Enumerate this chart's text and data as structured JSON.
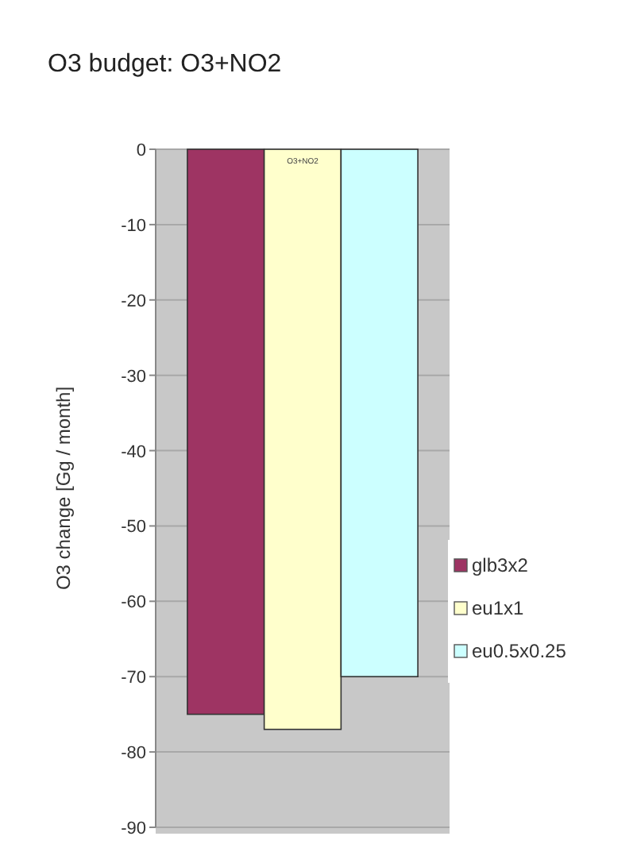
{
  "chart_data": {
    "type": "bar",
    "title": "O3 budget: O3+NO2",
    "ylabel": "O3 change [Gg / month]",
    "categories": [
      null
    ],
    "series": [
      {
        "name": "glb3x2",
        "color": "#9e3463",
        "values": [
          -75
        ]
      },
      {
        "name": "eu1x1",
        "color": "#ffffcc",
        "values": [
          -77
        ]
      },
      {
        "name": "eu0.5x0.25",
        "color": "#ccffff",
        "values": [
          -70
        ]
      }
    ],
    "ylim": [
      -90,
      0
    ],
    "yticks": [
      -90,
      -80,
      -70,
      -60,
      -50,
      -40,
      -30,
      -20,
      -10,
      0
    ],
    "grid": "y",
    "legend": "right",
    "annotations": [
      "O3+NO2"
    ]
  }
}
